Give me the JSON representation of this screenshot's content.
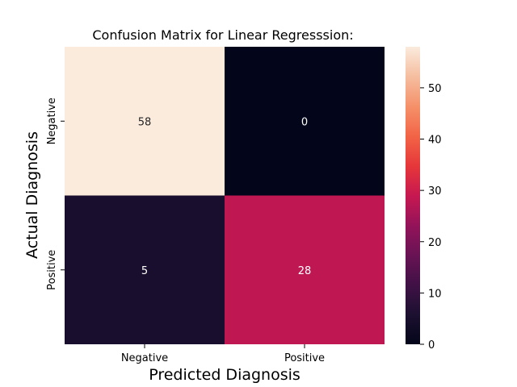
{
  "chart_data": {
    "type": "heatmap",
    "title": "Confusion Matrix for Linear Regresssion:",
    "xlabel": "Predicted Diagnosis",
    "ylabel": "Actual Diagnosis",
    "x_categories": [
      "Negative",
      "Positive"
    ],
    "y_categories": [
      "Negative",
      "Positive"
    ],
    "values": [
      [
        58,
        0
      ],
      [
        5,
        28
      ]
    ],
    "colorscale": "rocket",
    "colorbar": {
      "range": [
        0,
        58
      ],
      "ticks": [
        0,
        10,
        20,
        30,
        40,
        50
      ],
      "tick_labels": [
        "0",
        "10",
        "20",
        "30",
        "40",
        "50"
      ]
    },
    "grid": false
  }
}
